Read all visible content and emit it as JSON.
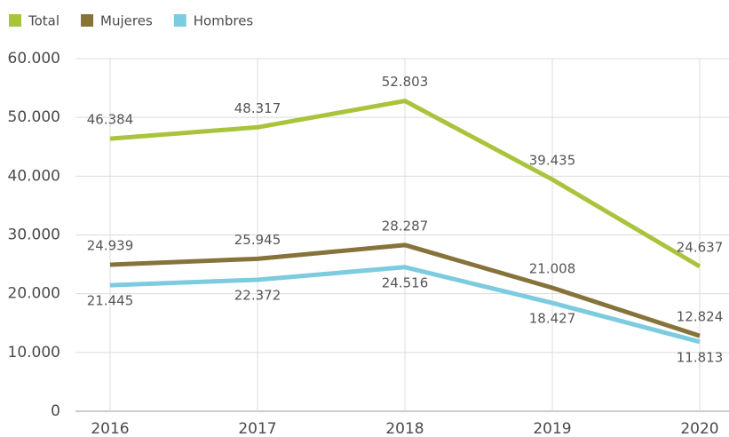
{
  "chart_data": {
    "type": "line",
    "categories": [
      "2016",
      "2017",
      "2018",
      "2019",
      "2020"
    ],
    "series": [
      {
        "name": "Total",
        "color": "#a9c43c",
        "values": [
          46384,
          48317,
          52803,
          39435,
          24637
        ],
        "value_labels": [
          "46.384",
          "48.317",
          "52.803",
          "39.435",
          "24.637"
        ]
      },
      {
        "name": "Mujeres",
        "color": "#86733a",
        "values": [
          24939,
          25945,
          28287,
          21008,
          12824
        ],
        "value_labels": [
          "24.939",
          "25.945",
          "28.287",
          "21.008",
          "12.824"
        ]
      },
      {
        "name": "Hombres",
        "color": "#7ccbdf",
        "values": [
          21445,
          22372,
          24516,
          18427,
          11813
        ],
        "value_labels": [
          "21.445",
          "22.372",
          "24.516",
          "18.427",
          "11.813"
        ]
      }
    ],
    "ylim": [
      0,
      60000
    ],
    "yticks": [
      0,
      {
        "value": 10000,
        "label": "10.000"
      },
      {
        "value": 20000,
        "label": "20.000"
      },
      {
        "value": 30000,
        "label": "30.000"
      },
      {
        "value": 40000,
        "label": "40.000"
      },
      {
        "value": 50000,
        "label": "50.000"
      },
      {
        "value": 60000,
        "label": "60.000"
      }
    ],
    "grid": true,
    "legend": "top-left"
  }
}
